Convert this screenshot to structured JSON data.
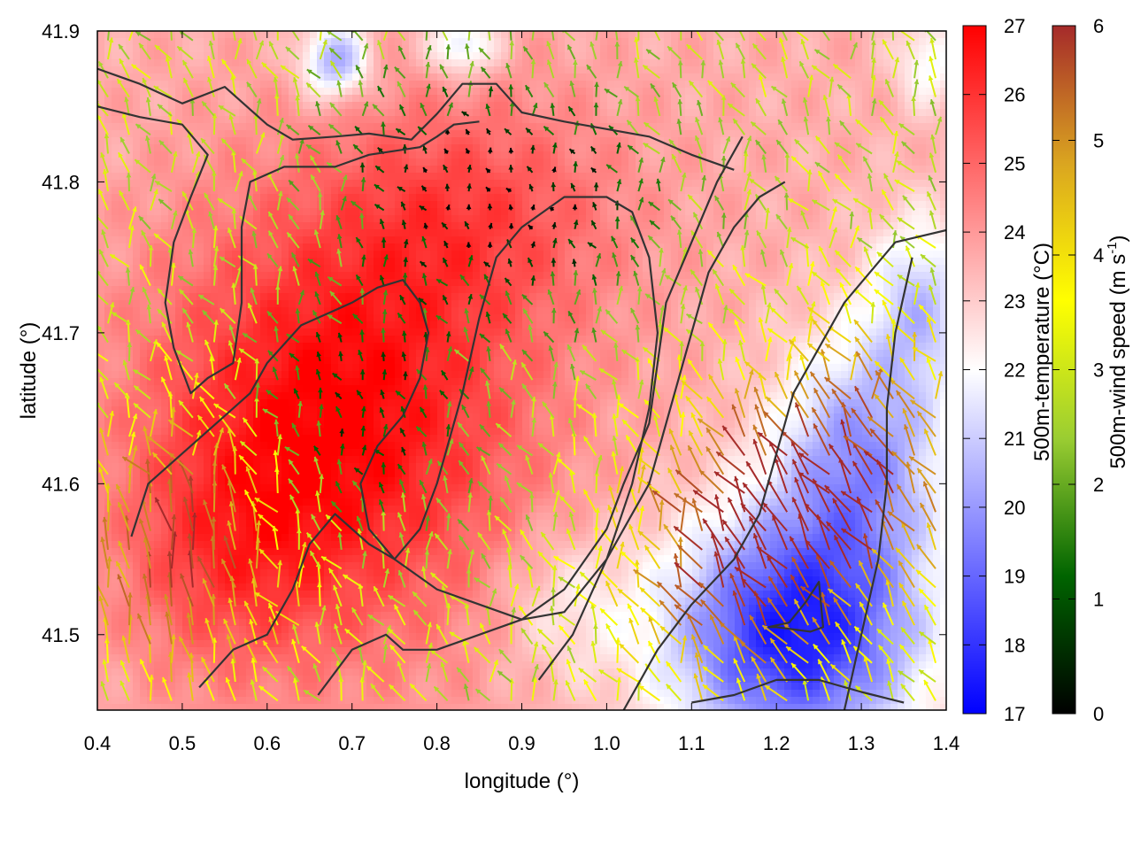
{
  "chart_data": {
    "type": "heatmap",
    "xlabel": "longitude (°)",
    "ylabel": "latitude (°)",
    "xlim": [
      0.4,
      1.4
    ],
    "ylim": [
      41.45,
      41.9
    ],
    "x_ticks": [
      "0.4",
      "0.5",
      "0.6",
      "0.7",
      "0.8",
      "0.9",
      "1.0",
      "1.1",
      "1.2",
      "1.3",
      "1.4"
    ],
    "x_tick_values": [
      0.4,
      0.5,
      0.6,
      0.7,
      0.8,
      0.9,
      1.0,
      1.1,
      1.2,
      1.3,
      1.4
    ],
    "y_ticks": [
      "41.5",
      "41.6",
      "41.7",
      "41.8",
      "41.9"
    ],
    "y_tick_values": [
      41.5,
      41.6,
      41.7,
      41.8,
      41.9
    ],
    "grid": false,
    "temperature_colorbar": {
      "label": "500m-temperature (°C)",
      "range": [
        17,
        27
      ],
      "ticks": [
        "17",
        "18",
        "19",
        "20",
        "21",
        "22",
        "23",
        "24",
        "25",
        "26",
        "27"
      ],
      "colors": [
        "#0000ff",
        "#ffffff",
        "#ff0000"
      ]
    },
    "wind_colorbar": {
      "label_main": "500m-wind speed (m s",
      "label_exp": "-1",
      "label_close": ")",
      "range": [
        0,
        6
      ],
      "ticks": [
        "0",
        "1",
        "2",
        "3",
        "4",
        "5",
        "6"
      ],
      "colors": [
        "#000000",
        "#006400",
        "#9acd32",
        "#ffff00",
        "#daa520",
        "#a52a2a"
      ]
    },
    "temperature_field": {
      "background_c": 23.6,
      "features": [
        {
          "lon": 0.68,
          "lat": 41.64,
          "amp_c": 3.4,
          "spread_lon": 0.22,
          "spread_lat": 0.14
        },
        {
          "lon": 0.84,
          "lat": 41.78,
          "amp_c": 1.6,
          "spread_lon": 0.18,
          "spread_lat": 0.08
        },
        {
          "lon": 0.55,
          "lat": 41.55,
          "amp_c": 1.2,
          "spread_lon": 0.12,
          "spread_lat": 0.08
        },
        {
          "lon": 1.22,
          "lat": 41.5,
          "amp_c": -6.0,
          "spread_lon": 0.15,
          "spread_lat": 0.08
        },
        {
          "lon": 1.3,
          "lat": 41.62,
          "amp_c": -3.5,
          "spread_lon": 0.1,
          "spread_lat": 0.08
        },
        {
          "lon": 1.37,
          "lat": 41.72,
          "amp_c": -2.5,
          "spread_lon": 0.06,
          "spread_lat": 0.06
        },
        {
          "lon": 0.68,
          "lat": 41.88,
          "amp_c": -3.5,
          "spread_lon": 0.04,
          "spread_lat": 0.025
        },
        {
          "lon": 0.83,
          "lat": 41.89,
          "amp_c": -2.5,
          "spread_lon": 0.04,
          "spread_lat": 0.02
        },
        {
          "lon": 1.38,
          "lat": 41.88,
          "amp_c": -1.8,
          "spread_lon": 0.04,
          "spread_lat": 0.03
        },
        {
          "lon": 0.95,
          "lat": 41.52,
          "amp_c": -1.2,
          "spread_lon": 0.08,
          "spread_lat": 0.05
        }
      ]
    },
    "wind_field": {
      "sample_step_deg": 0.025,
      "flow_from": "south-west",
      "calm_centers": [
        {
          "lon": 0.8,
          "lat": 41.8
        },
        {
          "lon": 0.72,
          "lat": 41.65
        },
        {
          "lon": 0.95,
          "lat": 41.78
        }
      ],
      "strong_zones": [
        {
          "lon": 0.5,
          "lat": 41.55
        },
        {
          "lon": 1.15,
          "lat": 41.55
        },
        {
          "lon": 1.3,
          "lat": 41.6
        }
      ]
    },
    "contours_note": "terrain isolines",
    "contours": [
      [
        [
          0.4,
          41.875
        ],
        [
          0.45,
          41.865
        ],
        [
          0.5,
          41.852
        ],
        [
          0.55,
          41.863
        ],
        [
          0.6,
          41.838
        ],
        [
          0.63,
          41.828
        ],
        [
          0.68,
          41.83
        ],
        [
          0.72,
          41.832
        ],
        [
          0.77,
          41.828
        ],
        [
          0.8,
          41.845
        ],
        [
          0.83,
          41.865
        ],
        [
          0.87,
          41.865
        ],
        [
          0.9,
          41.846
        ],
        [
          0.95,
          41.84
        ],
        [
          1.0,
          41.835
        ],
        [
          1.05,
          41.83
        ],
        [
          1.1,
          41.818
        ],
        [
          1.15,
          41.808
        ]
      ],
      [
        [
          0.4,
          41.85
        ],
        [
          0.45,
          41.843
        ],
        [
          0.5,
          41.838
        ],
        [
          0.53,
          41.818
        ],
        [
          0.51,
          41.79
        ],
        [
          0.49,
          41.76
        ],
        [
          0.48,
          41.72
        ],
        [
          0.49,
          41.69
        ],
        [
          0.51,
          41.66
        ],
        [
          0.53,
          41.67
        ],
        [
          0.56,
          41.68
        ],
        [
          0.57,
          41.72
        ],
        [
          0.57,
          41.77
        ],
        [
          0.58,
          41.8
        ],
        [
          0.62,
          41.81
        ],
        [
          0.68,
          41.81
        ],
        [
          0.72,
          41.818
        ],
        [
          0.78,
          41.823
        ],
        [
          0.8,
          41.83
        ],
        [
          0.82,
          41.838
        ],
        [
          0.85,
          41.84
        ]
      ],
      [
        [
          0.44,
          41.565
        ],
        [
          0.46,
          41.6
        ],
        [
          0.5,
          41.62
        ],
        [
          0.54,
          41.64
        ],
        [
          0.58,
          41.66
        ],
        [
          0.6,
          41.68
        ],
        [
          0.64,
          41.705
        ],
        [
          0.7,
          41.72
        ],
        [
          0.73,
          41.73
        ],
        [
          0.76,
          41.735
        ],
        [
          0.78,
          41.72
        ],
        [
          0.79,
          41.7
        ],
        [
          0.78,
          41.67
        ],
        [
          0.76,
          41.645
        ],
        [
          0.73,
          41.625
        ],
        [
          0.71,
          41.6
        ],
        [
          0.72,
          41.57
        ],
        [
          0.75,
          41.55
        ],
        [
          0.8,
          41.53
        ],
        [
          0.85,
          41.52
        ],
        [
          0.9,
          41.51
        ],
        [
          0.95,
          41.515
        ],
        [
          1.0,
          41.55
        ],
        [
          1.05,
          41.6
        ],
        [
          1.08,
          41.66
        ],
        [
          1.1,
          41.7
        ],
        [
          1.12,
          41.74
        ],
        [
          1.15,
          41.77
        ],
        [
          1.18,
          41.79
        ],
        [
          1.21,
          41.8
        ]
      ],
      [
        [
          0.52,
          41.465
        ],
        [
          0.56,
          41.49
        ],
        [
          0.6,
          41.5
        ],
        [
          0.63,
          41.53
        ],
        [
          0.65,
          41.56
        ],
        [
          0.68,
          41.58
        ],
        [
          0.72,
          41.56
        ],
        [
          0.75,
          41.55
        ],
        [
          0.78,
          41.57
        ],
        [
          0.8,
          41.6
        ],
        [
          0.83,
          41.66
        ],
        [
          0.85,
          41.71
        ],
        [
          0.87,
          41.75
        ],
        [
          0.9,
          41.77
        ],
        [
          0.95,
          41.79
        ],
        [
          1.0,
          41.79
        ],
        [
          1.03,
          41.78
        ],
        [
          1.05,
          41.75
        ],
        [
          1.06,
          41.7
        ],
        [
          1.05,
          41.65
        ],
        [
          1.03,
          41.6
        ],
        [
          1.0,
          41.55
        ],
        [
          0.96,
          41.5
        ],
        [
          0.92,
          41.47
        ]
      ],
      [
        [
          0.66,
          41.46
        ],
        [
          0.7,
          41.49
        ],
        [
          0.74,
          41.5
        ],
        [
          0.76,
          41.49
        ],
        [
          0.8,
          41.49
        ],
        [
          0.85,
          41.5
        ],
        [
          0.9,
          41.51
        ],
        [
          0.95,
          41.53
        ],
        [
          1.0,
          41.57
        ],
        [
          1.02,
          41.6
        ],
        [
          1.05,
          41.64
        ],
        [
          1.06,
          41.68
        ],
        [
          1.07,
          41.72
        ],
        [
          1.1,
          41.76
        ],
        [
          1.13,
          41.8
        ],
        [
          1.16,
          41.83
        ]
      ],
      [
        [
          1.02,
          41.45
        ],
        [
          1.06,
          41.49
        ],
        [
          1.1,
          41.52
        ],
        [
          1.15,
          41.55
        ],
        [
          1.18,
          41.58
        ],
        [
          1.2,
          41.62
        ],
        [
          1.22,
          41.66
        ],
        [
          1.25,
          41.69
        ],
        [
          1.28,
          41.72
        ],
        [
          1.31,
          41.74
        ],
        [
          1.34,
          41.76
        ],
        [
          1.4,
          41.768
        ]
      ],
      [
        [
          1.19,
          41.505
        ],
        [
          1.215,
          41.508
        ],
        [
          1.235,
          41.522
        ],
        [
          1.25,
          41.535
        ],
        [
          1.255,
          41.505
        ],
        [
          1.24,
          41.502
        ],
        [
          1.2,
          41.505
        ],
        [
          1.19,
          41.505
        ]
      ],
      [
        [
          1.1,
          41.455
        ],
        [
          1.15,
          41.46
        ],
        [
          1.2,
          41.47
        ],
        [
          1.25,
          41.47
        ],
        [
          1.3,
          41.462
        ],
        [
          1.35,
          41.455
        ]
      ],
      [
        [
          1.28,
          41.45
        ],
        [
          1.3,
          41.5
        ],
        [
          1.32,
          41.55
        ],
        [
          1.33,
          41.6
        ],
        [
          1.33,
          41.65
        ],
        [
          1.34,
          41.7
        ],
        [
          1.36,
          41.75
        ]
      ]
    ]
  }
}
